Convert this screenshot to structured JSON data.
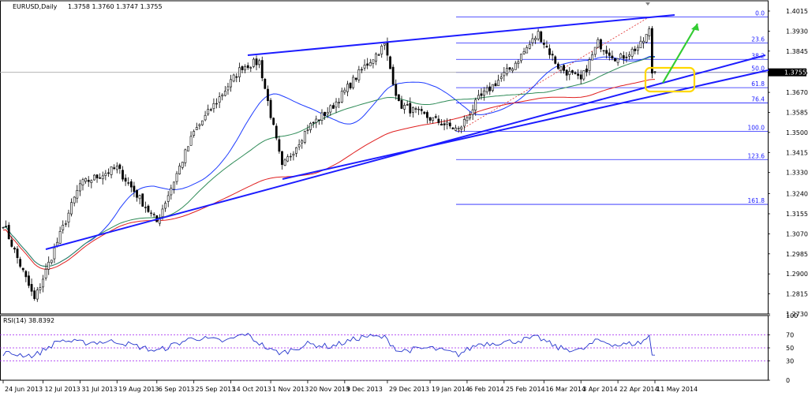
{
  "header": {
    "symbol": "EURUSD,Daily",
    "ohlc": "1.3758 1.3760 1.3747 1.3755"
  },
  "rsi_label": "RSI(14) 38.8392",
  "colors": {
    "background": "#ffffff",
    "candle": "#000000",
    "grid": "#c0c0c0",
    "trendline": "#1c1cff",
    "fib": "#2020ff",
    "ma_fast": "#1e3cff",
    "ma_mid": "#2e8b57",
    "ma_slow": "#e02020",
    "rsi": "#2233cc",
    "rsi_levels": "#a020f0",
    "highlight": "#ffd800",
    "arrow": "#33cc33",
    "current_price_box": "#000000"
  },
  "chart_data": [
    {
      "type": "candlestick",
      "title": "EURUSD,Daily",
      "ohlc_last": {
        "open": 1.3758,
        "high": 1.376,
        "low": 1.3747,
        "close": 1.3755
      },
      "current_price": 1.3755,
      "y_ticks": [
        "1.4015",
        "1.3930",
        "1.3845",
        "1.3755",
        "1.3670",
        "1.3585",
        "1.3500",
        "1.3415",
        "1.3330",
        "1.3240",
        "1.3155",
        "1.3070",
        "1.2985",
        "1.2900",
        "1.2815",
        "1.2730"
      ],
      "ylim": [
        1.273,
        1.4015
      ],
      "x_ticks": [
        "24 Jun 2013",
        "12 Jul 2013",
        "31 Jul 2013",
        "19 Aug 2013",
        "6 Sep 2013",
        "25 Sep 2013",
        "14 Oct 2013",
        "1 Nov 2013",
        "20 Nov 2013",
        "9 Dec 2013",
        "29 Dec 2013",
        "19 Jan 2014",
        "6 Feb 2014",
        "25 Feb 2014",
        "16 Mar 2014",
        "3 Apr 2014",
        "22 Apr 2014",
        "11 May 2014"
      ],
      "anchors": [
        {
          "date": "24 Jun 2013",
          "close": 1.3115
        },
        {
          "date": "9 Jul 2013",
          "close": 1.279
        },
        {
          "date": "31 Jul 2013",
          "close": 1.328
        },
        {
          "date": "19 Aug 2013",
          "close": 1.335
        },
        {
          "date": "6 Sep 2013",
          "close": 1.312
        },
        {
          "date": "25 Sep 2013",
          "close": 1.35
        },
        {
          "date": "18 Oct 2013",
          "close": 1.378
        },
        {
          "date": "28 Oct 2013",
          "close": 1.38
        },
        {
          "date": "7 Nov 2013",
          "close": 1.335
        },
        {
          "date": "20 Nov 2013",
          "close": 1.352
        },
        {
          "date": "1 Dec 2013",
          "close": 1.36
        },
        {
          "date": "18 Dec 2013",
          "close": 1.378
        },
        {
          "date": "27 Dec 2013",
          "close": 1.387
        },
        {
          "date": "3 Jan 2014",
          "close": 1.362
        },
        {
          "date": "19 Jan 2014",
          "close": 1.356
        },
        {
          "date": "3 Feb 2014",
          "close": 1.351
        },
        {
          "date": "12 Feb 2014",
          "close": 1.364
        },
        {
          "date": "28 Feb 2014",
          "close": 1.378
        },
        {
          "date": "13 Mar 2014",
          "close": 1.392
        },
        {
          "date": "24 Mar 2014",
          "close": 1.378
        },
        {
          "date": "3 Apr 2014",
          "close": 1.372
        },
        {
          "date": "11 Apr 2014",
          "close": 1.388
        },
        {
          "date": "22 Apr 2014",
          "close": 1.381
        },
        {
          "date": "2 May 2014",
          "close": 1.387
        },
        {
          "date": "7 May 2014",
          "close": 1.393
        },
        {
          "date": "11 May 2014",
          "close": 1.3755
        }
      ],
      "fibonacci": {
        "levels": [
          {
            "label": "0.0",
            "price": 1.399
          },
          {
            "label": "23.6",
            "price": 1.388
          },
          {
            "label": "38.2",
            "price": 1.381
          },
          {
            "label": "50.0",
            "price": 1.3755
          },
          {
            "label": "61.8",
            "price": 1.369
          },
          {
            "label": "76.4",
            "price": 1.3625
          },
          {
            "label": "100.0",
            "price": 1.3505
          },
          {
            "label": "123.6",
            "price": 1.3385
          },
          {
            "label": "161.8",
            "price": 1.3195
          }
        ]
      },
      "moving_averages": [
        "fast",
        "mid",
        "slow"
      ]
    },
    {
      "type": "line",
      "title": "RSI(14) 38.8392",
      "value": 38.8392,
      "y_ticks": [
        "100",
        "70",
        "50",
        "30",
        "0"
      ],
      "levels": [
        70,
        50,
        30
      ],
      "ylim": [
        0,
        100
      ],
      "anchors": [
        {
          "date": "24 Jun 2013",
          "value": 42
        },
        {
          "date": "9 Jul 2013",
          "value": 38
        },
        {
          "date": "20 Jul 2013",
          "value": 62
        },
        {
          "date": "31 Jul 2013",
          "value": 58
        },
        {
          "date": "19 Aug 2013",
          "value": 60
        },
        {
          "date": "6 Sep 2013",
          "value": 45
        },
        {
          "date": "25 Sep 2013",
          "value": 66
        },
        {
          "date": "10 Oct 2013",
          "value": 60
        },
        {
          "date": "20 Oct 2013",
          "value": 72
        },
        {
          "date": "1 Nov 2013",
          "value": 46
        },
        {
          "date": "7 Nov 2013",
          "value": 42
        },
        {
          "date": "20 Nov 2013",
          "value": 56
        },
        {
          "date": "1 Dec 2013",
          "value": 52
        },
        {
          "date": "18 Dec 2013",
          "value": 68
        },
        {
          "date": "27 Dec 2013",
          "value": 66
        },
        {
          "date": "3 Jan 2014",
          "value": 45
        },
        {
          "date": "19 Jan 2014",
          "value": 50
        },
        {
          "date": "3 Feb 2014",
          "value": 40
        },
        {
          "date": "12 Feb 2014",
          "value": 56
        },
        {
          "date": "28 Feb 2014",
          "value": 60
        },
        {
          "date": "13 Mar 2014",
          "value": 66
        },
        {
          "date": "24 Mar 2014",
          "value": 50
        },
        {
          "date": "3 Apr 2014",
          "value": 46
        },
        {
          "date": "11 Apr 2014",
          "value": 62
        },
        {
          "date": "22 Apr 2014",
          "value": 54
        },
        {
          "date": "2 May 2014",
          "value": 58
        },
        {
          "date": "7 May 2014",
          "value": 68
        },
        {
          "date": "11 May 2014",
          "value": 38.8392
        }
      ]
    }
  ]
}
